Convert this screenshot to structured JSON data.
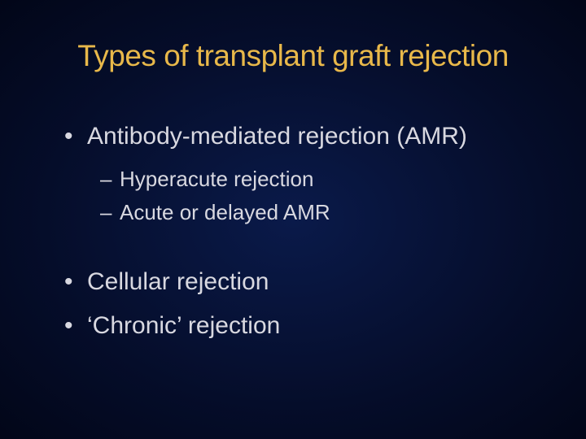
{
  "slide": {
    "title": "Types of transplant graft rejection",
    "title_color": "#e8b84a",
    "text_color": "#d8d8e0",
    "background": {
      "gradient_center": "#0a1a4a",
      "gradient_mid": "#050d2a",
      "gradient_edge": "#020618"
    },
    "typography": {
      "title_fontsize": 37,
      "bullet1_fontsize": 30,
      "bullet2_fontsize": 26,
      "font_family": "Arial"
    },
    "items": [
      {
        "level": 1,
        "text": "Antibody-mediated rejection (AMR)"
      },
      {
        "level": 2,
        "text": "Hyperacute rejection"
      },
      {
        "level": 2,
        "text": "Acute or delayed AMR"
      },
      {
        "level": 0,
        "text": ""
      },
      {
        "level": 1,
        "text": "Cellular rejection"
      },
      {
        "level": 1,
        "text": "‘Chronic’ rejection"
      }
    ]
  }
}
